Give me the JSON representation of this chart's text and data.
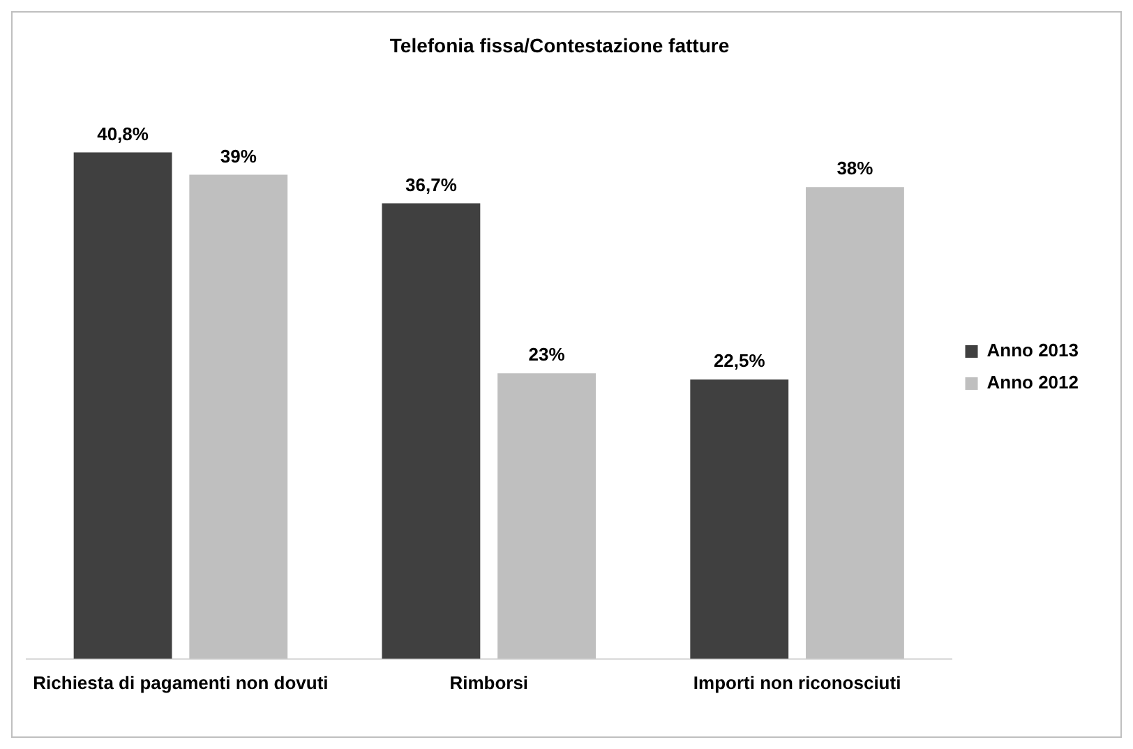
{
  "chart_data": {
    "type": "bar",
    "title": "Telefonia fissa/Contestazione fatture",
    "categories": [
      "Richiesta di pagamenti non dovuti",
      "Rimborsi",
      "Importi non riconosciuti"
    ],
    "series": [
      {
        "name": "Anno 2013",
        "color": "#404040",
        "values": [
          40.8,
          36.7,
          22.5
        ],
        "value_labels": [
          "40,8%",
          "36,7%",
          "22,5%"
        ]
      },
      {
        "name": "Anno 2012",
        "color": "#bfbfbf",
        "values": [
          39,
          23,
          38
        ],
        "value_labels": [
          "39%",
          "23%",
          "38%"
        ]
      }
    ],
    "legend": "right",
    "grid": false
  }
}
